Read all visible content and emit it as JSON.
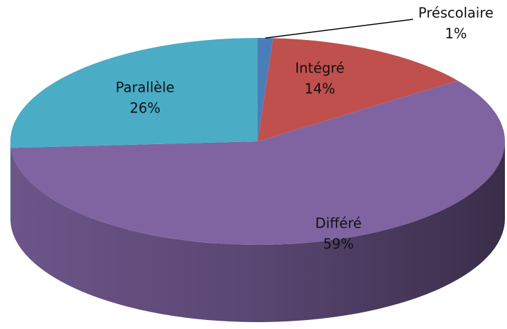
{
  "chart_data": {
    "type": "pie",
    "categories": [
      "Préscolaire",
      "Intégré",
      "Différé",
      "Parallèle"
    ],
    "values": [
      1,
      14,
      59,
      26
    ],
    "value_labels": [
      "1%",
      "14%",
      "59%",
      "26%"
    ],
    "colors": [
      "#4a7ebb",
      "#c0504d",
      "#8064a2",
      "#4bacc6"
    ]
  }
}
